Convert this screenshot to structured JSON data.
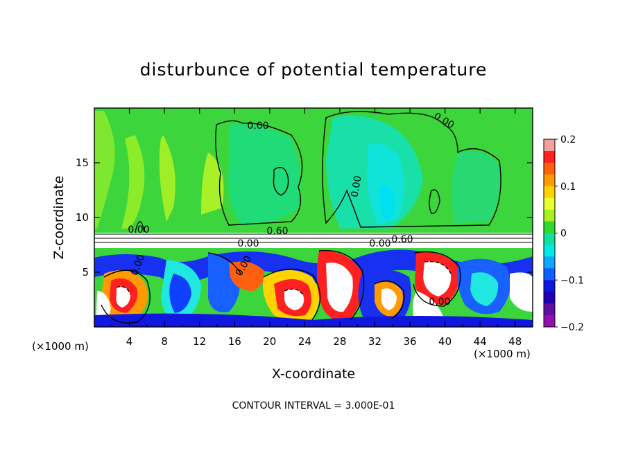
{
  "chart_data": {
    "type": "heatmap",
    "title": "disturbunce of potential temperature",
    "xlabel": "X-coordinate",
    "ylabel": "Z-coordinate",
    "x_unit_label_left": "(×1000 m)",
    "x_unit_label_right": "(×1000 m)",
    "xlim": [
      0,
      50
    ],
    "ylim": [
      0,
      20
    ],
    "x_ticks": [
      4,
      8,
      12,
      16,
      20,
      24,
      28,
      32,
      36,
      40,
      44,
      48
    ],
    "y_ticks": [
      5,
      10,
      15
    ],
    "colorbar": {
      "range": [
        -0.2,
        0.2
      ],
      "tick_values": [
        0.2,
        0.1,
        0,
        -0.1,
        -0.2
      ],
      "tick_labels": [
        "0.2",
        "0.1",
        "0",
        "−0.1",
        "−0.2"
      ],
      "colors": [
        "#f4a0a0",
        "#ff2020",
        "#ff6010",
        "#ff9a00",
        "#ffd200",
        "#e8ff30",
        "#a8f020",
        "#30d830",
        "#10e0a0",
        "#00e8e8",
        "#10a8ff",
        "#1060ff",
        "#1018e0",
        "#2000b0",
        "#6010a0",
        "#9010b0"
      ]
    },
    "contour_labels": [
      "0.00",
      "0.00",
      "0.00",
      "0.00",
      "0.60",
      "0.60",
      "0.00",
      "0.00",
      "0.00",
      "0.00",
      "0.00"
    ],
    "footer": "CONTOUR INTERVAL = 3.000E-01"
  }
}
